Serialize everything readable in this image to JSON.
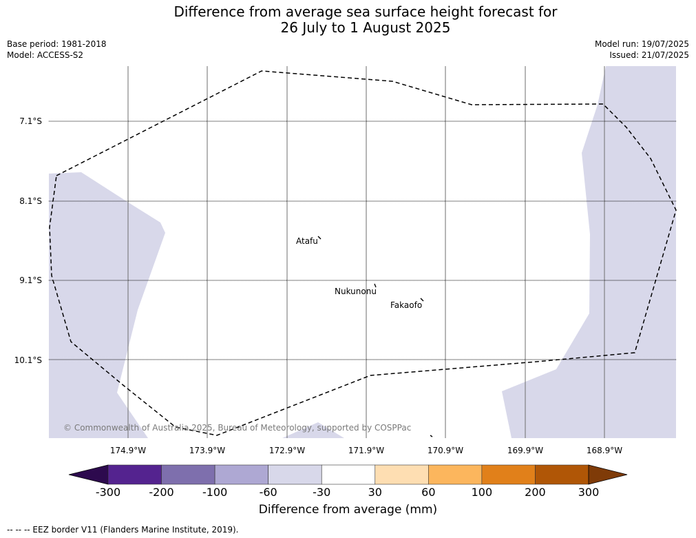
{
  "title_line1": "Difference from average sea surface height forecast for",
  "title_line2": "26 July to 1 August 2025",
  "base_period": "Base period: 1981-2018",
  "model": "Model: ACCESS-S2",
  "model_run": "Model run: 19/07/2025",
  "issued": "Issued: 21/07/2025",
  "credit": "© Commonwealth of Australia 2025, Bureau of Meteorology, supported by COSPPac",
  "lat_labels": [
    "7.1°S",
    "8.1°S",
    "9.1°S",
    "10.1°S"
  ],
  "lon_labels": [
    "174.9°W",
    "173.9°W",
    "172.9°W",
    "171.9°W",
    "170.9°W",
    "169.9°W",
    "168.9°W"
  ],
  "places": [
    {
      "name": "Atafu"
    },
    {
      "name": "Nukunonu"
    },
    {
      "name": "Fakaofo"
    }
  ],
  "colorbar": {
    "ticks": [
      "-300",
      "-200",
      "-100",
      "-60",
      "-30",
      "30",
      "60",
      "100",
      "200",
      "300"
    ],
    "colors": [
      "#2d0a4e",
      "#54238f",
      "#7e6fad",
      "#aea8d3",
      "#d8d8ea",
      "#ffffff",
      "#fedeb2",
      "#fcb65d",
      "#e1801a",
      "#b05606",
      "#7f3b08"
    ],
    "label": "Difference from average (mm)"
  },
  "colors": {
    "land_fill": "#d8d8ea"
  },
  "footer": "--  --  -- EEZ border V11 (Flanders Marine Institute, 2019)."
}
